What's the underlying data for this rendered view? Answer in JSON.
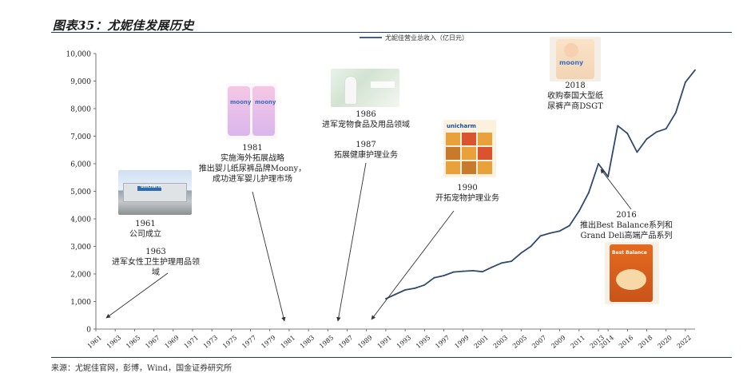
{
  "page": {
    "title": "图表35：尤妮佳发展历史",
    "source": "来源：尤妮佳官网，彭博，Wind，国金证券研究所"
  },
  "chart_data": {
    "type": "line",
    "title": "",
    "legend": {
      "label": "尤妮佳营业总收入（亿日元）",
      "position": "top-center"
    },
    "ylim": [
      0,
      10000
    ],
    "y_ticks": [
      "0",
      "1,000",
      "2,000",
      "3,000",
      "4,000",
      "5,000",
      "6,000",
      "7,000",
      "8,000",
      "9,000",
      "10,000"
    ],
    "x_range": [
      1961,
      2023
    ],
    "x_ticks": [
      "1961",
      "1963",
      "1965",
      "1967",
      "1969",
      "1971",
      "1973",
      "1975",
      "1977",
      "1979",
      "1981",
      "1983",
      "1985",
      "1987",
      "1989",
      "1991",
      "1993",
      "1995",
      "1997",
      "1999",
      "2001",
      "2003",
      "2005",
      "2007",
      "2009",
      "2011",
      "2013",
      "2014",
      "2016",
      "2018",
      "2020",
      "2022"
    ],
    "grid": false,
    "color": "#2f4a6e",
    "series": [
      {
        "name": "尤妮佳营业总收入（亿日元）",
        "x": [
          1991,
          1992,
          1993,
          1994,
          1995,
          1996,
          1997,
          1998,
          1999,
          2000,
          2001,
          2002,
          2003,
          2004,
          2005,
          2006,
          2007,
          2008,
          2009,
          2010,
          2011,
          2012,
          2013,
          2014,
          2015,
          2016,
          2017,
          2018,
          2019,
          2020,
          2021,
          2022,
          2023
        ],
        "y": [
          1100,
          1260,
          1420,
          1480,
          1600,
          1860,
          1940,
          2070,
          2100,
          2120,
          2080,
          2250,
          2400,
          2460,
          2760,
          3000,
          3380,
          3480,
          3560,
          3750,
          4280,
          4950,
          6000,
          5530,
          7380,
          7100,
          6420,
          6900,
          7150,
          7270,
          7850,
          8960,
          9400
        ]
      }
    ],
    "annotations": [
      {
        "lines": [
          "1961",
          "公司成立"
        ]
      },
      {
        "lines": [
          "1963",
          "进军女性卫生护理用品领",
          "域"
        ]
      },
      {
        "lines": [
          "1981",
          "实施海外拓展战略",
          "推出婴儿纸尿裤品牌Moony，",
          "成功进军婴儿护理市场"
        ]
      },
      {
        "lines": [
          "1986",
          "进军宠物食品及用品领域"
        ]
      },
      {
        "lines": [
          "1987",
          "拓展健康护理业务"
        ]
      },
      {
        "lines": [
          "1990",
          "开拓宠物护理业务"
        ]
      },
      {
        "lines": [
          "2016",
          "推出Best Balance系列和",
          "Grand Deli高端产品系列"
        ]
      },
      {
        "lines": [
          "2018",
          "收购泰国大型纸",
          "尿裤产商DSGT"
        ]
      }
    ]
  },
  "photos": {
    "factory": {
      "caption": "unicharm"
    },
    "moony": {
      "caption": "moony"
    },
    "pet_products": {
      "caption": "unicharm"
    },
    "moony_2018": {
      "caption": "moony"
    },
    "best_balance": {
      "caption": "Best Balance"
    }
  }
}
